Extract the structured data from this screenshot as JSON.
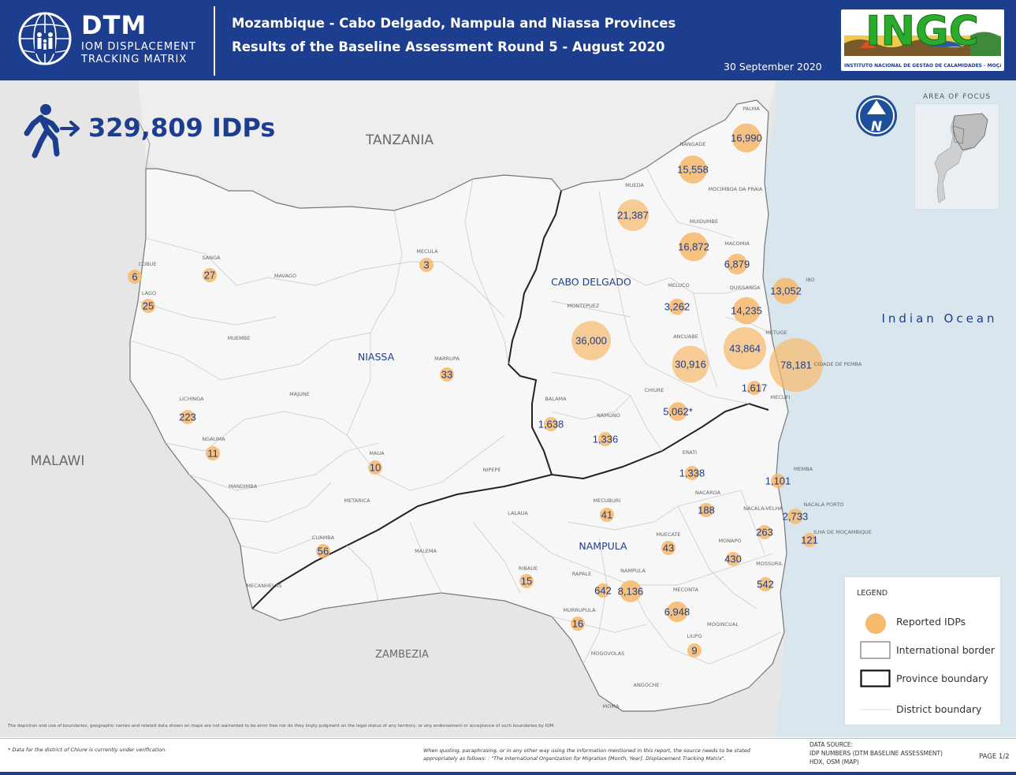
{
  "header": {
    "dtm": "DTM",
    "dtm_sub1": "IOM DISPLACEMENT",
    "dtm_sub2": "TRACKING MATRIX",
    "title_line1": "Mozambique - Cabo Delgado, Nampula and Niassa Provinces",
    "title_line2": "Results of the Baseline Assessment Round 5 - August 2020",
    "date": "30 September 2020",
    "ingc_logo_text": "INGC",
    "ingc_caption": "INSTITUTO NACIONAL DE GESTÃO DE CALAMIDADES - MOÇAMBIQUE"
  },
  "summary": {
    "total_idps": "329,809 IDPs"
  },
  "colors": {
    "brand_blue": "#1d3d8f",
    "ocean": "#d9e6ed",
    "land_focus": "#f6f6f6",
    "land_other": "#e6e6e6",
    "idp_bubble": "#f7b96a",
    "bubble_text": "#1d3d8f"
  },
  "map": {
    "countries": [
      "TANZANIA",
      "MALAWI",
      "ZAMBEZIA"
    ],
    "ocean": "Indian Ocean",
    "provinces": [
      "CABO DELGADO",
      "NIASSA",
      "NAMPULA"
    ],
    "districts_no_bubble": [
      "MAVAGO",
      "MUEMBE",
      "MAJUNE",
      "METARICA",
      "MANDIMBA",
      "MECANHELAS",
      "NIPEPE",
      "LALAUA",
      "MALEMA",
      "MOGOVOLAS",
      "ANGOCHE",
      "MOMA",
      "MOGINCUAL"
    ]
  },
  "idp_points": [
    {
      "district": "PALMA",
      "idps": "16,990"
    },
    {
      "district": "NANGADE",
      "idps": "15,558"
    },
    {
      "district": "MOCIMBOA DA PRAIA",
      "idps": ""
    },
    {
      "district": "MUEDA",
      "idps": "21,387"
    },
    {
      "district": "MUIDUMBE",
      "idps": "16,872"
    },
    {
      "district": "MACOMIA",
      "idps": "6,879"
    },
    {
      "district": "IBO",
      "idps": "13,052"
    },
    {
      "district": "MELUCO",
      "idps": "3,262"
    },
    {
      "district": "QUISSANGA",
      "idps": "14,235"
    },
    {
      "district": "MONTEPUEZ",
      "idps": "36,000"
    },
    {
      "district": "ANCUABE",
      "idps": "30,916"
    },
    {
      "district": "METUGE",
      "idps": "43,864"
    },
    {
      "district": "CIDADE DE PEMBA",
      "idps": "78,181"
    },
    {
      "district": "MECUFI",
      "idps": "1,617"
    },
    {
      "district": "CHIURE",
      "idps": "5,062*"
    },
    {
      "district": "BALAMA",
      "idps": "1,638"
    },
    {
      "district": "NAMUNO",
      "idps": "1,336"
    },
    {
      "district": "ERATI",
      "idps": "1,338"
    },
    {
      "district": "MEMBA",
      "idps": "1,101"
    },
    {
      "district": "NACAROA",
      "idps": "188"
    },
    {
      "district": "NACALA PORTO",
      "idps": "2,733"
    },
    {
      "district": "NACALA-VELHA",
      "idps": "263"
    },
    {
      "district": "ILHA DE MOÇAMBIQUE",
      "idps": "121"
    },
    {
      "district": "MONAPO",
      "idps": "430"
    },
    {
      "district": "MOSSURIL",
      "idps": "542"
    },
    {
      "district": "MECUBURI",
      "idps": "41"
    },
    {
      "district": "MUECATE",
      "idps": "43"
    },
    {
      "district": "RIBAUE",
      "idps": "15"
    },
    {
      "district": "RAPALE",
      "idps": "642"
    },
    {
      "district": "NAMPULA",
      "idps": "8,136"
    },
    {
      "district": "MECONTA",
      "idps": "6,948"
    },
    {
      "district": "MURRUPULA",
      "idps": "16"
    },
    {
      "district": "LIUPO",
      "idps": "9"
    },
    {
      "district": "MECULA",
      "idps": "3"
    },
    {
      "district": "MARRUPA",
      "idps": "33"
    },
    {
      "district": "SANGA",
      "idps": "27"
    },
    {
      "district": "COBUE",
      "idps": "6"
    },
    {
      "district": "LAGO",
      "idps": "25"
    },
    {
      "district": "LICHINGA",
      "idps": "223"
    },
    {
      "district": "NGAUMA",
      "idps": "11"
    },
    {
      "district": "MAUA",
      "idps": "10"
    },
    {
      "district": "CUAMBA",
      "idps": "56"
    }
  ],
  "inset": {
    "title": "AREA OF FOCUS"
  },
  "legend": {
    "title": "LEGEND",
    "items": [
      "Reported IDPs",
      "International border",
      "Province boundary",
      "District boundary"
    ]
  },
  "footer": {
    "map_disclaimer": "The depiction and use of boundaries, geographic names and related data shown on maps are not warranted to be error free nor do they imply judgment on the legal status of any territory, or any endorsement or acceptance of such boundaries by IOM.",
    "footnote": "* Data for the district of Chiure is currently under verification.",
    "citation_line1": "When quoting, paraphrasing, or in any other way using the information mentioned in this report, the source needs to be stated",
    "citation_line2": "appropriately as follows: : \"The International Organization for Migration [Month, Year]. Displacement Tracking Matrix\".",
    "datasource_title": "DATA SOURCE:",
    "datasource_line1": "IDP NUMBERS (DTM BASELINE ASSESSMENT)",
    "datasource_line2": "HDX, OSM (MAP)",
    "page": "PAGE 1/2"
  }
}
